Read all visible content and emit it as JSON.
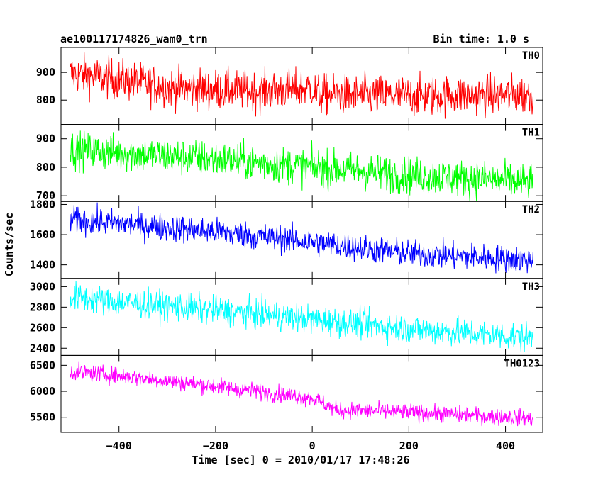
{
  "header": {
    "left": "ae100117174826_wam0_trn",
    "right": "Bin time: 1.0 s"
  },
  "chart_data": {
    "type": "line",
    "title": "ae100117174826_wam0_trn",
    "xlabel": "Time [sec] 0 = 2010/01/17 17:48:26",
    "ylabel": "Counts/sec",
    "bin_time": "1.0 s",
    "x_range": [
      -501,
      457
    ],
    "xlim": [
      -520,
      477
    ],
    "x_ticks": [
      -400,
      -200,
      0,
      200,
      400
    ],
    "x_tick_labels": [
      "−400",
      "−200",
      "0",
      "200",
      "400"
    ],
    "grid": false,
    "panels": [
      {
        "name": "TH0",
        "color": "#ff0000",
        "ylim": [
          712,
          990
        ],
        "y_ticks": [
          800,
          900
        ],
        "y_tick_labels": [
          "800",
          "900"
        ],
        "trend": [
          [
            -501,
            895
          ],
          [
            -400,
            875
          ],
          [
            -300,
            845
          ],
          [
            -100,
            830
          ],
          [
            0,
            845
          ],
          [
            10,
            820
          ],
          [
            200,
            815
          ],
          [
            457,
            820
          ]
        ],
        "noise": 36
      },
      {
        "name": "TH1",
        "color": "#00ff00",
        "ylim": [
          680,
          950
        ],
        "y_ticks": [
          700,
          800,
          900
        ],
        "y_tick_labels": [
          "700",
          "800",
          "900"
        ],
        "trend": [
          [
            -501,
            862
          ],
          [
            -400,
            850
          ],
          [
            -200,
            828
          ],
          [
            0,
            800
          ],
          [
            200,
            772
          ],
          [
            457,
            748
          ]
        ],
        "noise": 32
      },
      {
        "name": "TH2",
        "color": "#0000ff",
        "ylim": [
          1310,
          1820
        ],
        "y_ticks": [
          1400,
          1600,
          1800
        ],
        "y_tick_labels": [
          "1400",
          "1600",
          "1800"
        ],
        "trend": [
          [
            -501,
            1700
          ],
          [
            -400,
            1675
          ],
          [
            -200,
            1620
          ],
          [
            0,
            1550
          ],
          [
            200,
            1475
          ],
          [
            457,
            1430
          ]
        ],
        "noise": 45
      },
      {
        "name": "TH3",
        "color": "#00ffff",
        "ylim": [
          2330,
          3080
        ],
        "y_ticks": [
          2400,
          2600,
          2800,
          3000
        ],
        "y_tick_labels": [
          "2400",
          "2600",
          "2800",
          "3000"
        ],
        "trend": [
          [
            -501,
            2900
          ],
          [
            -400,
            2850
          ],
          [
            -200,
            2770
          ],
          [
            0,
            2680
          ],
          [
            200,
            2590
          ],
          [
            457,
            2500
          ]
        ],
        "noise": 70
      },
      {
        "name": "TH0123",
        "color": "#ff00ff",
        "ylim": [
          5210,
          6690
        ],
        "y_ticks": [
          5500,
          6000,
          6500
        ],
        "y_tick_labels": [
          "5500",
          "6000",
          "6500"
        ],
        "trend": [
          [
            -501,
            6380
          ],
          [
            -400,
            6300
          ],
          [
            -200,
            6100
          ],
          [
            0,
            5870
          ],
          [
            50,
            5640
          ],
          [
            200,
            5600
          ],
          [
            457,
            5480
          ]
        ],
        "noise": 80
      }
    ]
  }
}
